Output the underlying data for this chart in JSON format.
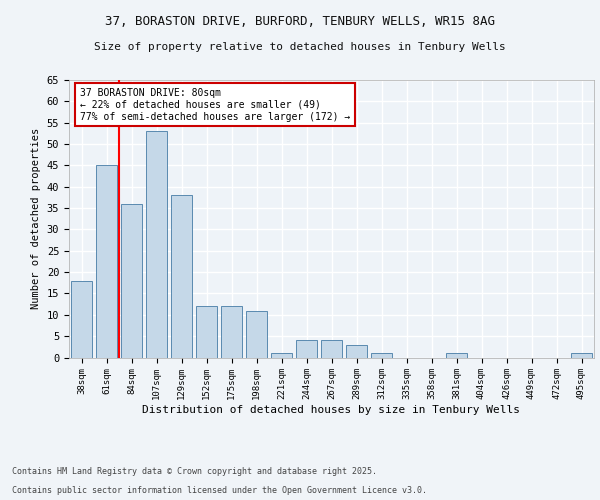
{
  "title1": "37, BORASTON DRIVE, BURFORD, TENBURY WELLS, WR15 8AG",
  "title2": "Size of property relative to detached houses in Tenbury Wells",
  "xlabel": "Distribution of detached houses by size in Tenbury Wells",
  "ylabel": "Number of detached properties",
  "categories": [
    "38sqm",
    "61sqm",
    "84sqm",
    "107sqm",
    "129sqm",
    "152sqm",
    "175sqm",
    "198sqm",
    "221sqm",
    "244sqm",
    "267sqm",
    "289sqm",
    "312sqm",
    "335sqm",
    "358sqm",
    "381sqm",
    "404sqm",
    "426sqm",
    "449sqm",
    "472sqm",
    "495sqm"
  ],
  "values": [
    18,
    45,
    36,
    53,
    38,
    12,
    12,
    11,
    1,
    4,
    4,
    3,
    1,
    0,
    0,
    1,
    0,
    0,
    0,
    0,
    1
  ],
  "bar_color": "#c5d8e8",
  "bar_edge_color": "#5a8ab0",
  "annotation_title": "37 BORASTON DRIVE: 80sqm",
  "annotation_line1": "← 22% of detached houses are smaller (49)",
  "annotation_line2": "77% of semi-detached houses are larger (172) →",
  "annotation_box_color": "#ffffff",
  "annotation_box_edge": "#cc0000",
  "ylim": [
    0,
    65
  ],
  "yticks": [
    0,
    5,
    10,
    15,
    20,
    25,
    30,
    35,
    40,
    45,
    50,
    55,
    60,
    65
  ],
  "footer1": "Contains HM Land Registry data © Crown copyright and database right 2025.",
  "footer2": "Contains public sector information licensed under the Open Government Licence v3.0.",
  "bg_color": "#eef3f8",
  "grid_color": "#ffffff",
  "fig_bg": "#f0f4f8"
}
